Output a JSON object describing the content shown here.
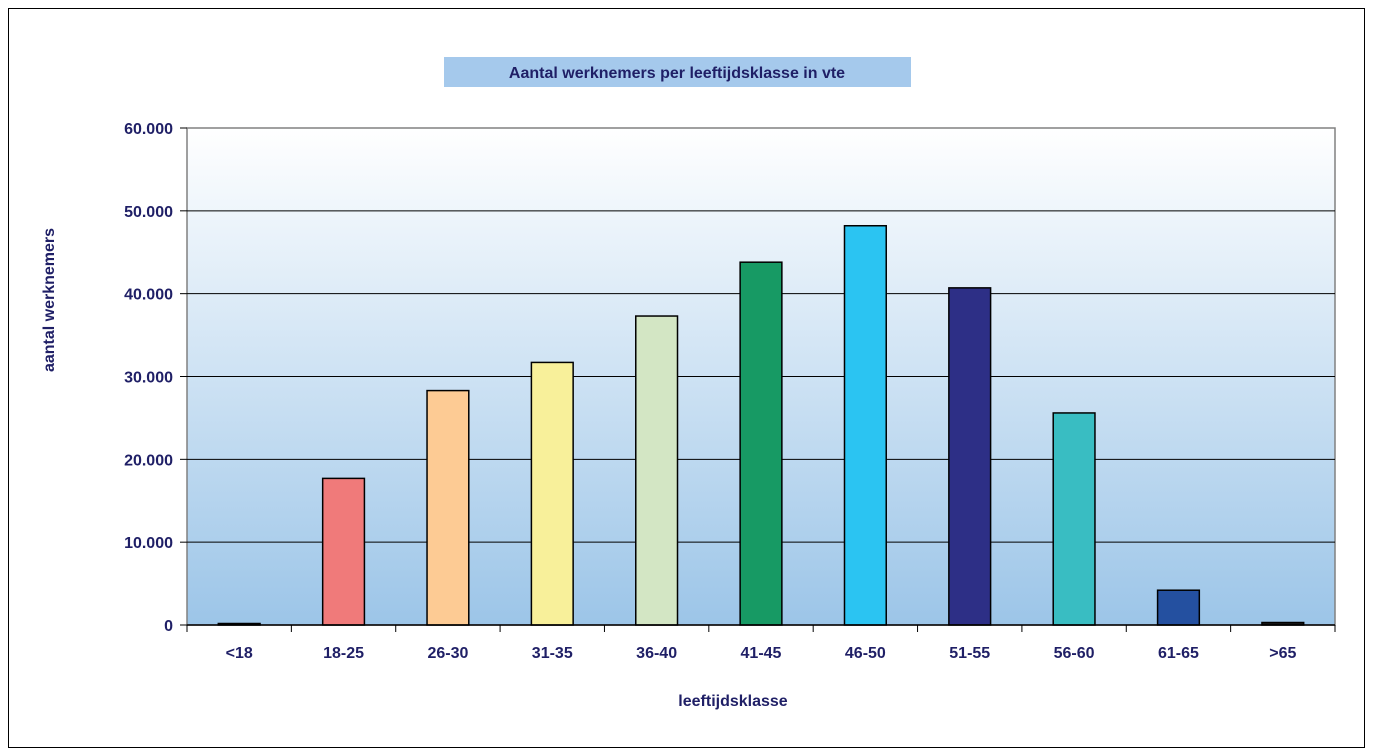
{
  "chart_data": {
    "type": "bar",
    "title": "Aantal werknemers per leeftijdsklasse in vte",
    "xlabel": "leeftijdsklasse",
    "ylabel": "aantal werknemers",
    "categories": [
      "<18",
      "18-25",
      "26-30",
      "31-35",
      "36-40",
      "41-45",
      "46-50",
      "51-55",
      "56-60",
      "61-65",
      ">65"
    ],
    "values": [
      100,
      17700,
      28300,
      31700,
      37300,
      43800,
      48200,
      40700,
      25600,
      4200,
      300
    ],
    "bar_colors": [
      "#1a1a1a",
      "#f07a7a",
      "#fdcb94",
      "#f8f09a",
      "#d3e6c4",
      "#179a64",
      "#2bc4f2",
      "#2d2f86",
      "#39bdc2",
      "#2450a0",
      "#1a1a1a"
    ],
    "ylim": [
      0,
      60000
    ],
    "yticks": [
      0,
      10000,
      20000,
      30000,
      40000,
      50000,
      60000
    ],
    "ytick_labels": [
      "0",
      "10.000",
      "20.000",
      "30.000",
      "40.000",
      "50.000",
      "60.000"
    ],
    "grid": true,
    "legend": "none",
    "colors": {
      "title_bg": "#a5c9ec",
      "plot_gradient_top": "#ffffff",
      "plot_gradient_bottom": "#9cc5e8",
      "text": "#1f1f66"
    }
  }
}
